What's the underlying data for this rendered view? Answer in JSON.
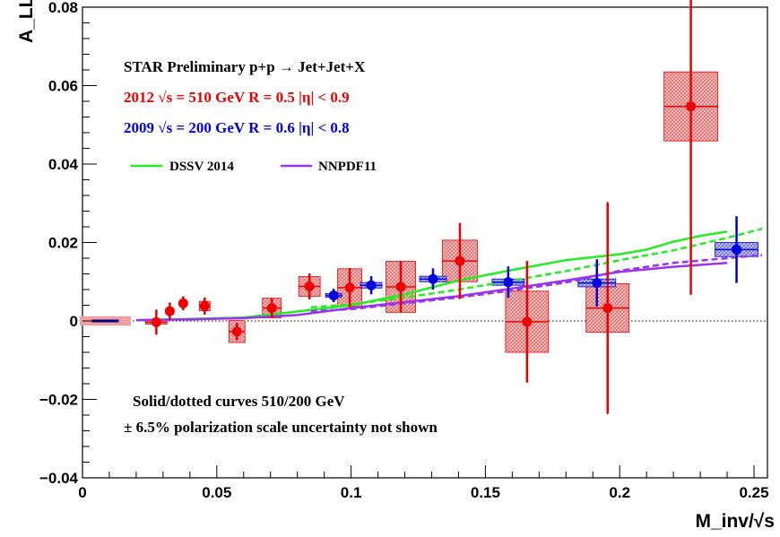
{
  "chart_data": {
    "type": "scatter",
    "xlabel": "M_inv/√s",
    "ylabel": "A_LL",
    "xlim": [
      0,
      0.255
    ],
    "ylim": [
      -0.04,
      0.08
    ],
    "x_ticks": [
      0,
      0.05,
      0.1,
      0.15,
      0.2,
      0.25
    ],
    "x_tick_labels": [
      "0",
      "0.05",
      "0.1",
      "0.15",
      "0.2",
      "0.25"
    ],
    "y_ticks": [
      -0.04,
      -0.02,
      0,
      0.02,
      0.04,
      0.06,
      0.08
    ],
    "y_tick_labels": [
      "−0.04",
      "−0.02",
      "0",
      "0.02",
      "0.04",
      "0.06",
      "0.08"
    ],
    "annotations": [
      {
        "text": "STAR Preliminary p+p  → Jet+Jet+X",
        "color": "#000000"
      },
      {
        "text": "2012  √s = 510 GeV R = 0.5  |η| < 0.9",
        "color": "#ee0000"
      },
      {
        "text": "2009  √s = 200 GeV R = 0.6  |η| < 0.8",
        "color": "#0000dd"
      },
      {
        "text": "Solid/dotted curves 510/200 GeV",
        "color": "#000000"
      },
      {
        "text": "± 6.5% polarization scale uncertainty not shown",
        "color": "#000000"
      }
    ],
    "legend": [
      {
        "label": "DSSV 2014",
        "color": "#22ee22"
      },
      {
        "label": "NNPDF11",
        "color": "#9933ee"
      }
    ],
    "series": [
      {
        "color": "#ee0000",
        "points": [
          {
            "x": 0.0275,
            "y": -0.0003,
            "err": 0.0032,
            "sys_x": 0.004,
            "sys_y": 0.0005
          },
          {
            "x": 0.0325,
            "y": 0.0025,
            "err": 0.0022,
            "sys_x": 0.0015,
            "sys_y": 0.0007
          },
          {
            "x": 0.0375,
            "y": 0.0045,
            "err": 0.0018,
            "sys_x": 0.0015,
            "sys_y": 0.0005
          },
          {
            "x": 0.0455,
            "y": 0.0038,
            "err": 0.0022,
            "sys_x": 0.002,
            "sys_y": 0.0012
          },
          {
            "x": 0.0575,
            "y": -0.0027,
            "err": 0.0022,
            "sys_x": 0.003,
            "sys_y": 0.0028
          },
          {
            "x": 0.0705,
            "y": 0.0033,
            "err": 0.0025,
            "sys_x": 0.0035,
            "sys_y": 0.0025
          },
          {
            "x": 0.0845,
            "y": 0.0088,
            "err": 0.0033,
            "sys_x": 0.004,
            "sys_y": 0.0025
          },
          {
            "x": 0.0995,
            "y": 0.0085,
            "err": 0.005,
            "sys_x": 0.0045,
            "sys_y": 0.0048
          },
          {
            "x": 0.1185,
            "y": 0.0087,
            "err": 0.0065,
            "sys_x": 0.0055,
            "sys_y": 0.0065
          },
          {
            "x": 0.1405,
            "y": 0.0153,
            "err": 0.0097,
            "sys_x": 0.0065,
            "sys_y": 0.0053
          },
          {
            "x": 0.1655,
            "y": -0.0002,
            "err": 0.0155,
            "sys_x": 0.008,
            "sys_y": 0.0078
          },
          {
            "x": 0.1955,
            "y": 0.0033,
            "err": 0.027,
            "sys_x": 0.008,
            "sys_y": 0.0062
          },
          {
            "x": 0.2265,
            "y": 0.0547,
            "err": 0.048,
            "sys_x": 0.01,
            "sys_y": 0.0088
          }
        ]
      },
      {
        "color": "#0000dd",
        "points": [
          {
            "x": 0.0935,
            "y": 0.0065,
            "err": 0.0017,
            "sys_x": 0.003,
            "sys_y": 0.0005
          },
          {
            "x": 0.1075,
            "y": 0.0091,
            "err": 0.0023,
            "sys_x": 0.004,
            "sys_y": 0.0007
          },
          {
            "x": 0.1305,
            "y": 0.0107,
            "err": 0.0027,
            "sys_x": 0.005,
            "sys_y": 0.0007
          },
          {
            "x": 0.1585,
            "y": 0.0099,
            "err": 0.004,
            "sys_x": 0.006,
            "sys_y": 0.0008
          },
          {
            "x": 0.1915,
            "y": 0.0097,
            "err": 0.006,
            "sys_x": 0.007,
            "sys_y": 0.001
          },
          {
            "x": 0.2435,
            "y": 0.0182,
            "err": 0.0085,
            "sys_x": 0.008,
            "sys_y": 0.0018
          }
        ]
      }
    ],
    "scale_box": {
      "x": 0.0085,
      "y": 0,
      "half_w": 0.0095,
      "half_h": 0.0012
    },
    "curves": [
      {
        "color": "#22ee22",
        "dashed": false,
        "points": [
          [
            0.02,
            0.0002
          ],
          [
            0.04,
            0.0005
          ],
          [
            0.06,
            0.0009
          ],
          [
            0.08,
            0.0024
          ],
          [
            0.1,
            0.004
          ],
          [
            0.12,
            0.0068
          ],
          [
            0.14,
            0.0103
          ],
          [
            0.16,
            0.013
          ],
          [
            0.18,
            0.0155
          ],
          [
            0.2,
            0.017
          ],
          [
            0.21,
            0.0182
          ],
          [
            0.22,
            0.0202
          ],
          [
            0.23,
            0.0217
          ],
          [
            0.24,
            0.0228
          ]
        ]
      },
      {
        "color": "#22ee22",
        "dashed": true,
        "points": [
          [
            0.085,
            0.0035
          ],
          [
            0.1,
            0.0042
          ],
          [
            0.12,
            0.006
          ],
          [
            0.14,
            0.008
          ],
          [
            0.16,
            0.0103
          ],
          [
            0.18,
            0.0127
          ],
          [
            0.2,
            0.0155
          ],
          [
            0.22,
            0.018
          ],
          [
            0.24,
            0.0212
          ],
          [
            0.253,
            0.0235
          ]
        ]
      },
      {
        "color": "#9933ee",
        "dashed": false,
        "points": [
          [
            0.02,
            0.0002
          ],
          [
            0.04,
            0.0004
          ],
          [
            0.06,
            0.0007
          ],
          [
            0.08,
            0.0015
          ],
          [
            0.1,
            0.0033
          ],
          [
            0.12,
            0.0048
          ],
          [
            0.14,
            0.0063
          ],
          [
            0.16,
            0.0083
          ],
          [
            0.18,
            0.0103
          ],
          [
            0.2,
            0.0125
          ],
          [
            0.22,
            0.0138
          ],
          [
            0.24,
            0.0148
          ]
        ]
      },
      {
        "color": "#9933ee",
        "dashed": true,
        "points": [
          [
            0.085,
            0.0025
          ],
          [
            0.1,
            0.003
          ],
          [
            0.12,
            0.0045
          ],
          [
            0.14,
            0.006
          ],
          [
            0.16,
            0.0078
          ],
          [
            0.18,
            0.0098
          ],
          [
            0.2,
            0.0128
          ],
          [
            0.22,
            0.0148
          ],
          [
            0.24,
            0.016
          ],
          [
            0.253,
            0.0168
          ]
        ]
      }
    ]
  }
}
